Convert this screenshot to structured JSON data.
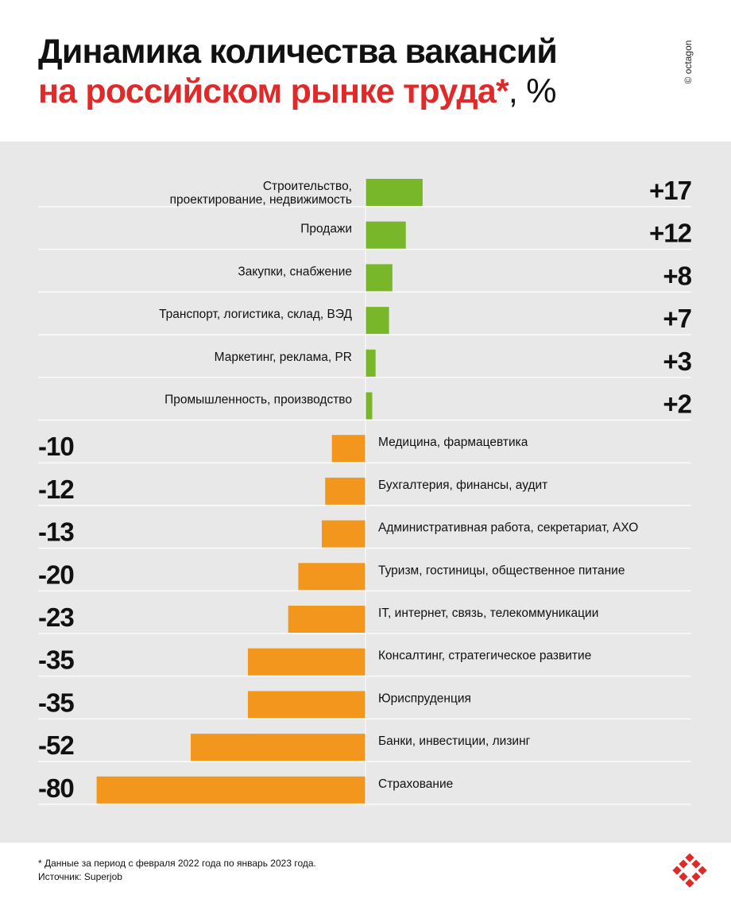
{
  "header": {
    "title_line1": "Динамика количества вакансий",
    "title_line2_red": "на российском рынке труда*",
    "title_line2_tail": ", %",
    "credit": "© octagon"
  },
  "footer": {
    "note": "* Данные за период с февраля 2022 года по январь 2023 года.",
    "source": "Источник: Superjob"
  },
  "colors": {
    "positive": "#78b72a",
    "negative": "#f2961e",
    "accent_red": "#e02a2a",
    "panel_bg": "#e8e8e8"
  },
  "icons": {
    "brand_logo": "octagon-logo-icon"
  },
  "chart_data": {
    "type": "bar",
    "orientation": "horizontal",
    "title": "Динамика количества вакансий на российском рынке труда*, %",
    "unit": "%",
    "grid": false,
    "categories": [
      "Строительство,\nпроектирование, недвижимость",
      "Продажи",
      "Закупки, снабжение",
      "Транспорт, логистика, склад, ВЭД",
      "Маркетинг, реклама, PR",
      "Промышленность, производство",
      "Медицина, фармацевтика",
      "Бухгалтерия, финансы, аудит",
      "Административная работа, секретариат, АХО",
      "Туризм, гостиницы, общественное питание",
      "IT, интернет, связь, телекоммуникации",
      "Консалтинг, стратегическое развитие",
      "Юриспруденция",
      "Банки, инвестиции, лизинг",
      "Страхование"
    ],
    "values": [
      17,
      12,
      8,
      7,
      3,
      2,
      -10,
      -12,
      -13,
      -20,
      -23,
      -35,
      -35,
      -52,
      -80
    ],
    "value_labels": [
      "+17",
      "+12",
      "+8",
      "+7",
      "+3",
      "+2",
      "-10",
      "-12",
      "-13",
      "-20",
      "-23",
      "-35",
      "-35",
      "-52",
      "-80"
    ]
  }
}
